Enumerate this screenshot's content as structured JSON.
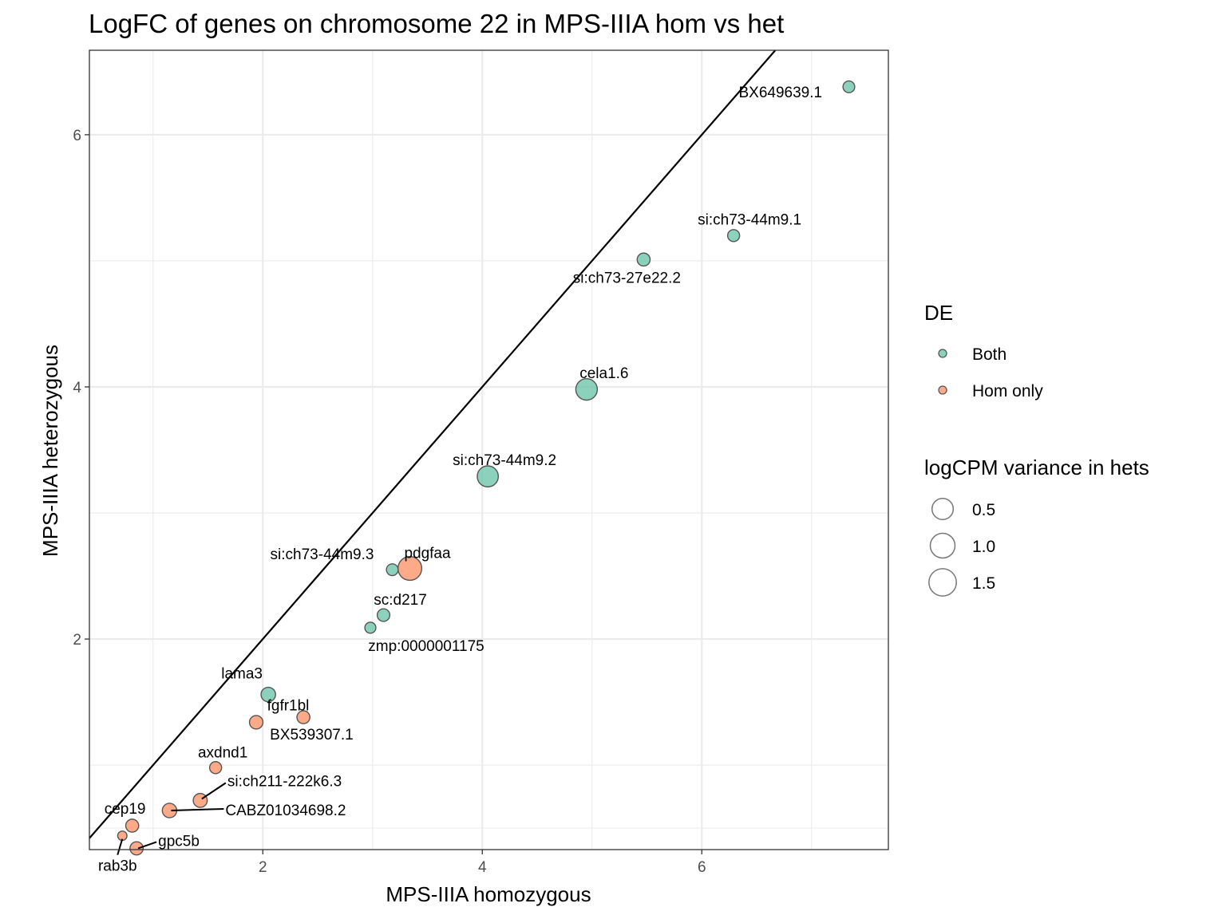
{
  "chart_data": {
    "type": "scatter",
    "title": "LogFC of genes on chromosome 22 in MPS-IIIA hom vs het",
    "xlabel": "MPS-IIIA homozygous",
    "ylabel": "MPS-IIIA heterozygous",
    "xlim": [
      0.42,
      7.7
    ],
    "ylim": [
      0.33,
      6.67
    ],
    "xticks": [
      2,
      4,
      6
    ],
    "yticks": [
      2,
      4,
      6
    ],
    "grid": true,
    "reference_line": {
      "slope": 1,
      "intercept": 0
    },
    "legend_placement": "right",
    "color_legend": {
      "title": "DE",
      "entries": [
        {
          "label": "Both",
          "color": "#66c2a5"
        },
        {
          "label": "Hom only",
          "color": "#fc8d62"
        }
      ]
    },
    "size_legend": {
      "title": "logCPM variance in hets",
      "entries": [
        {
          "label": "0.5",
          "value": 0.5
        },
        {
          "label": "1.0",
          "value": 1.0
        },
        {
          "label": "1.5",
          "value": 1.5
        }
      ]
    },
    "points": [
      {
        "label": "BX649639.1",
        "x": 7.34,
        "y": 6.38,
        "group": "Both",
        "variance": 0.2
      },
      {
        "label": "si:ch73-44m9.1",
        "x": 6.29,
        "y": 5.2,
        "group": "Both",
        "variance": 0.22
      },
      {
        "label": "si:ch73-27e22.2",
        "x": 5.47,
        "y": 5.01,
        "group": "Both",
        "variance": 0.3
      },
      {
        "label": "cela1.6",
        "x": 4.95,
        "y": 3.98,
        "group": "Both",
        "variance": 1.6
      },
      {
        "label": "si:ch73-44m9.2",
        "x": 4.05,
        "y": 3.29,
        "group": "Both",
        "variance": 1.5
      },
      {
        "label": "si:ch73-44m9.3",
        "x": 3.18,
        "y": 2.55,
        "group": "Both",
        "variance": 0.2
      },
      {
        "label": "pdgfaa",
        "x": 3.34,
        "y": 2.56,
        "group": "Hom only",
        "variance": 2.1
      },
      {
        "label": "sc:d217",
        "x": 3.1,
        "y": 2.19,
        "group": "Both",
        "variance": 0.27
      },
      {
        "label": "zmp:0000001175",
        "x": 2.98,
        "y": 2.09,
        "group": "Both",
        "variance": 0.15
      },
      {
        "label": "lama3",
        "x": 2.05,
        "y": 1.56,
        "group": "Both",
        "variance": 0.46
      },
      {
        "label": "fgfr1bl",
        "x": 1.94,
        "y": 1.34,
        "group": "Hom only",
        "variance": 0.35
      },
      {
        "label": "BX539307.1",
        "x": 2.37,
        "y": 1.38,
        "group": "Hom only",
        "variance": 0.3
      },
      {
        "label": "axdnd1",
        "x": 1.57,
        "y": 0.98,
        "group": "Hom only",
        "variance": 0.22
      },
      {
        "label": "si:ch211-222k6.3",
        "x": 1.43,
        "y": 0.72,
        "group": "Hom only",
        "variance": 0.4
      },
      {
        "label": "CABZ01034698.2",
        "x": 1.15,
        "y": 0.64,
        "group": "Hom only",
        "variance": 0.45
      },
      {
        "label": "cep19",
        "x": 0.81,
        "y": 0.52,
        "group": "Hom only",
        "variance": 0.3
      },
      {
        "label": "rab3b",
        "x": 0.72,
        "y": 0.44,
        "group": "Hom only",
        "variance": 0.06
      },
      {
        "label": "gpc5b",
        "x": 0.85,
        "y": 0.34,
        "group": "Hom only",
        "variance": 0.32
      }
    ]
  }
}
